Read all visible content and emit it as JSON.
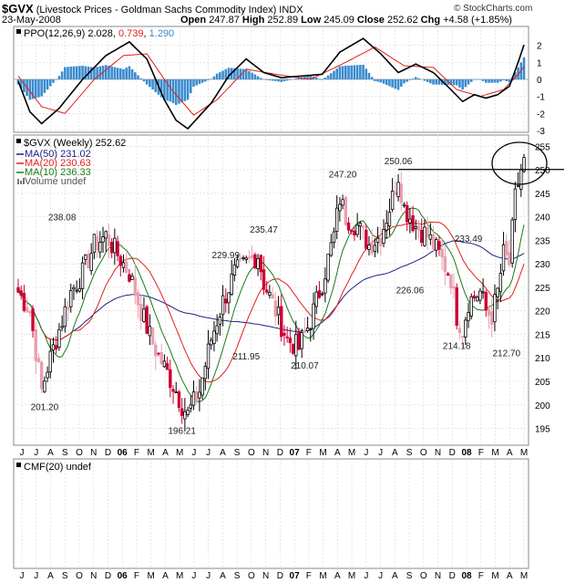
{
  "header": {
    "symbol": "$GVX",
    "title": "(Livestock Prices - Goldman Sachs Commodity Index)",
    "exchange": "INDX",
    "date": "23-May-2008",
    "open_label": "Open",
    "open": "247.87",
    "high_label": "High",
    "high": "252.89",
    "low_label": "Low",
    "low": "245.09",
    "close_label": "Close",
    "close": "252.62",
    "chg_label": "Chg",
    "chg": "+4.58 (+1.85%)",
    "watermark": "© StockCharts.com"
  },
  "colors": {
    "up": "#000000",
    "down": "#cc0033",
    "down_light": "#e8a0b0",
    "ma50": "#1a237e",
    "ma20": "#e0201b",
    "ma10": "#1b7a1b",
    "ppo_line": "#000000",
    "ppo_signal": "#e0201b",
    "hist": "#3a8ccf",
    "grid": "#d6d6d6"
  },
  "chart_data": [
    {
      "type": "line",
      "panel": "PPO",
      "legend": {
        "name": "PPO(12,26,9)",
        "ppo": "2.028",
        "signal": "0.739",
        "hist": "1.290"
      },
      "ylim": [
        -3,
        3
      ],
      "y_ticks": [
        "2",
        "1",
        "0",
        "-1",
        "-2",
        "-3"
      ],
      "ppo_anchors": [
        [
          0,
          -0.1
        ],
        [
          4,
          -1.9
        ],
        [
          8,
          -2.6
        ],
        [
          14,
          -1.7
        ],
        [
          22,
          0.0
        ],
        [
          30,
          1.4
        ],
        [
          38,
          2.2
        ],
        [
          44,
          1.2
        ],
        [
          50,
          -1.2
        ],
        [
          54,
          -2.4
        ],
        [
          58,
          -2.9
        ],
        [
          66,
          -1.4
        ],
        [
          72,
          0.2
        ],
        [
          78,
          1.2
        ],
        [
          84,
          0.4
        ],
        [
          90,
          0.1
        ],
        [
          97,
          0.2
        ],
        [
          104,
          0.3
        ],
        [
          110,
          1.6
        ],
        [
          118,
          2.4
        ],
        [
          124,
          1.5
        ],
        [
          130,
          0.4
        ],
        [
          136,
          0.9
        ],
        [
          142,
          0.4
        ],
        [
          148,
          -0.6
        ],
        [
          152,
          -1.3
        ],
        [
          156,
          -0.9
        ],
        [
          160,
          -1.1
        ],
        [
          164,
          -0.9
        ],
        [
          168,
          -0.4
        ],
        [
          171,
          1.0
        ],
        [
          173,
          2.03
        ]
      ],
      "signal_anchors": [
        [
          0,
          0.2
        ],
        [
          8,
          -1.6
        ],
        [
          16,
          -2.0
        ],
        [
          26,
          0.0
        ],
        [
          36,
          1.4
        ],
        [
          44,
          1.5
        ],
        [
          52,
          -0.5
        ],
        [
          60,
          -2.1
        ],
        [
          68,
          -1.2
        ],
        [
          78,
          0.6
        ],
        [
          88,
          0.3
        ],
        [
          100,
          0.0
        ],
        [
          112,
          1.0
        ],
        [
          122,
          1.9
        ],
        [
          132,
          0.8
        ],
        [
          142,
          0.7
        ],
        [
          150,
          -0.6
        ],
        [
          158,
          -1.0
        ],
        [
          166,
          -0.6
        ],
        [
          171,
          0.3
        ],
        [
          173,
          0.74
        ]
      ]
    },
    {
      "type": "candlestick",
      "panel": "Price",
      "legend": {
        "name": "$GVX (Weekly)",
        "value": "252.62"
      },
      "ylim": [
        192,
        257
      ],
      "y_ticks": [
        255,
        250,
        245,
        240,
        235,
        230,
        225,
        220,
        215,
        210,
        205,
        200,
        195
      ],
      "series": [
        {
          "name": "MA(50)",
          "value": "231.02"
        },
        {
          "name": "MA(20)",
          "value": "230.63"
        },
        {
          "name": "MA(10)",
          "value": "236.33"
        },
        {
          "name": "Volume undef",
          "value": ""
        }
      ],
      "close_anchors": [
        [
          0,
          224
        ],
        [
          4,
          220
        ],
        [
          8,
          203
        ],
        [
          10,
          208
        ],
        [
          14,
          216
        ],
        [
          18,
          224
        ],
        [
          22,
          228
        ],
        [
          26,
          234
        ],
        [
          30,
          236
        ],
        [
          34,
          232
        ],
        [
          38,
          228
        ],
        [
          42,
          220
        ],
        [
          46,
          213
        ],
        [
          50,
          208
        ],
        [
          54,
          203
        ],
        [
          56,
          200
        ],
        [
          58,
          198
        ],
        [
          62,
          203
        ],
        [
          66,
          214
        ],
        [
          70,
          222
        ],
        [
          74,
          228
        ],
        [
          78,
          230
        ],
        [
          82,
          232
        ],
        [
          84,
          226
        ],
        [
          88,
          220
        ],
        [
          92,
          214
        ],
        [
          96,
          212
        ],
        [
          100,
          218
        ],
        [
          104,
          226
        ],
        [
          108,
          236
        ],
        [
          110,
          244
        ],
        [
          112,
          240
        ],
        [
          116,
          238
        ],
        [
          120,
          234
        ],
        [
          124,
          236
        ],
        [
          128,
          244
        ],
        [
          130,
          249
        ],
        [
          132,
          242
        ],
        [
          136,
          238
        ],
        [
          140,
          236
        ],
        [
          144,
          232
        ],
        [
          148,
          227
        ],
        [
          150,
          219
        ],
        [
          152,
          216
        ],
        [
          154,
          222
        ],
        [
          158,
          224
        ],
        [
          160,
          220
        ],
        [
          162,
          219
        ],
        [
          164,
          224
        ],
        [
          166,
          232
        ],
        [
          168,
          230
        ],
        [
          170,
          244
        ],
        [
          172,
          250
        ],
        [
          173,
          252.62
        ]
      ],
      "annotations": [
        {
          "label": "238.08",
          "x": 15,
          "y": 238.08
        },
        {
          "label": "201.20",
          "x": 9,
          "y": 201.2
        },
        {
          "label": "196.21",
          "x": 56,
          "y": 196.21
        },
        {
          "label": "229.99",
          "x": 71,
          "y": 229.99
        },
        {
          "label": "211.95",
          "x": 78,
          "y": 211.95
        },
        {
          "label": "235.47",
          "x": 84,
          "y": 235.47
        },
        {
          "label": "210.07",
          "x": 98,
          "y": 210.07
        },
        {
          "label": "247.20",
          "x": 111,
          "y": 247.2
        },
        {
          "label": "250.06",
          "x": 130,
          "y": 250.06
        },
        {
          "label": "226.06",
          "x": 134,
          "y": 226.06
        },
        {
          "label": "233.49",
          "x": 154,
          "y": 233.49
        },
        {
          "label": "214.18",
          "x": 150,
          "y": 214.18
        },
        {
          "label": "212.70",
          "x": 167,
          "y": 212.7
        }
      ],
      "resistance_level": 250.06
    },
    {
      "type": "line",
      "panel": "CMF",
      "legend": {
        "name": "CMF(20)",
        "value": "undef"
      }
    }
  ],
  "x_axis": {
    "month_labels": [
      "J",
      "J",
      "A",
      "S",
      "O",
      "N",
      "D",
      "06",
      "F",
      "M",
      "A",
      "M",
      "J",
      "J",
      "A",
      "S",
      "O",
      "N",
      "D",
      "07",
      "F",
      "M",
      "A",
      "M",
      "J",
      "J",
      "A",
      "S",
      "O",
      "N",
      "D",
      "08",
      "F",
      "M",
      "A",
      "M"
    ]
  }
}
